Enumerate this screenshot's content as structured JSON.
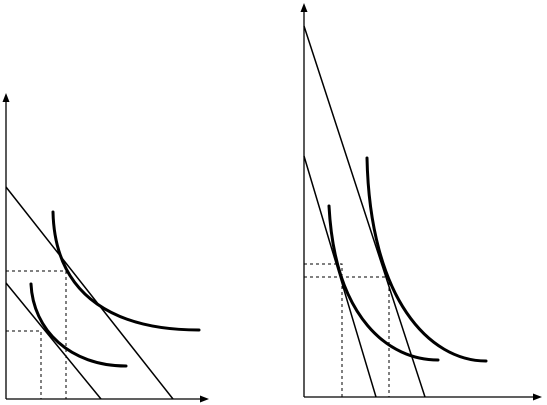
{
  "colors": {
    "background": "#ffffff",
    "ink": "#000000"
  },
  "panels": [
    {
      "name": "left-panel",
      "budget_lines": 2,
      "indifference_curves": 2,
      "tangency_points": 2
    },
    {
      "name": "right-panel",
      "budget_lines": 2,
      "indifference_curves": 2,
      "tangency_points": 2
    }
  ]
}
